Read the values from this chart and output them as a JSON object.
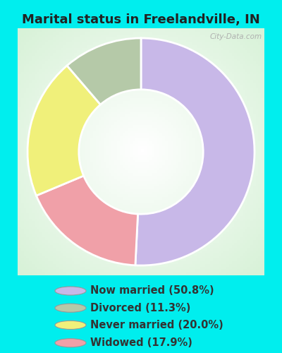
{
  "title": "Marital status in Freelandville, IN",
  "slices": [
    50.8,
    17.9,
    20.0,
    11.3
  ],
  "labels": [
    "Now married (50.8%)",
    "Divorced (11.3%)",
    "Never married (20.0%)",
    "Widowed (17.9%)"
  ],
  "legend_colors": [
    "#c8b8e8",
    "#b5c9a8",
    "#f0f07a",
    "#f0a0a8"
  ],
  "pie_colors": [
    "#c8b8e8",
    "#f0a0a8",
    "#f0f07a",
    "#b5c9a8"
  ],
  "background_color": "#00eeee",
  "title_fontsize": 13,
  "legend_fontsize": 10.5,
  "watermark": "City-Data.com",
  "start_angle": 90
}
